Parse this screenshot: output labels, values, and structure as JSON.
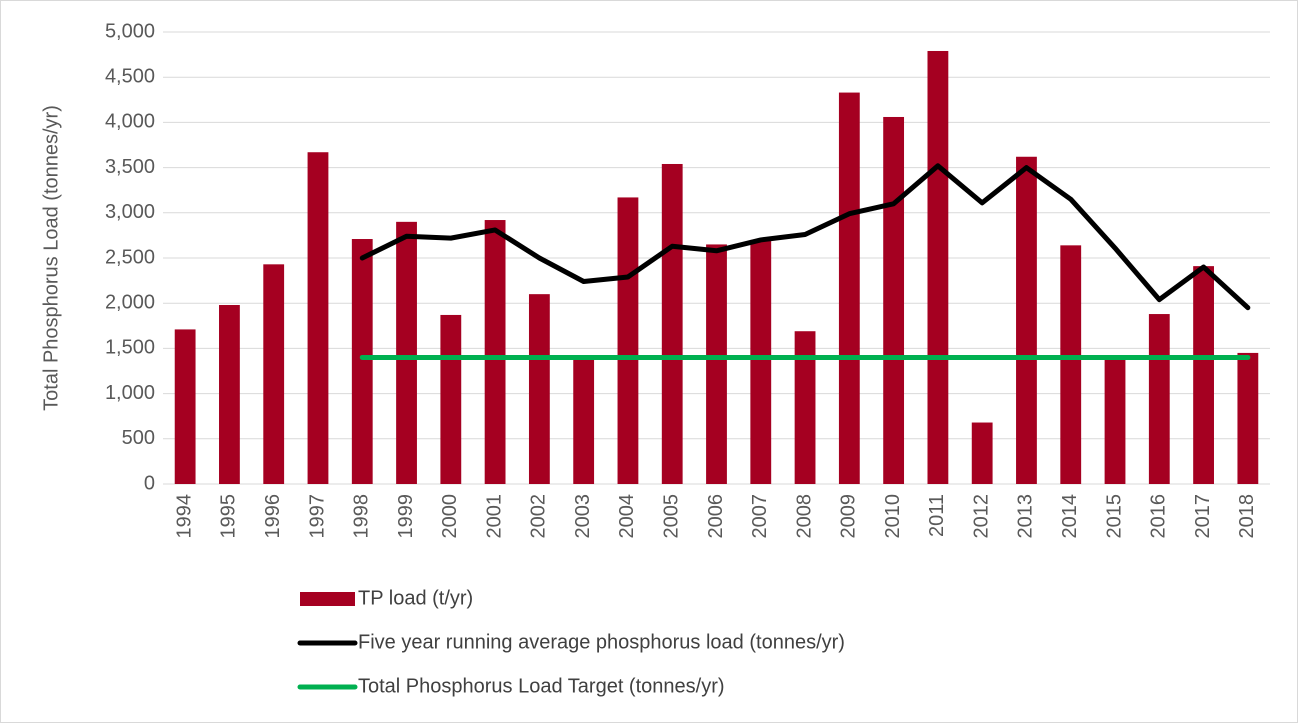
{
  "chart_data": {
    "type": "bar",
    "y_label": "Total Phosphorus Load (tonnes/yr)",
    "categories": [
      "1994",
      "1995",
      "1996",
      "1997",
      "1998",
      "1999",
      "2000",
      "2001",
      "2002",
      "2003",
      "2004",
      "2005",
      "2006",
      "2007",
      "2008",
      "2009",
      "2010",
      "2011",
      "2012",
      "2013",
      "2014",
      "2015",
      "2016",
      "2017",
      "2018"
    ],
    "series": [
      {
        "name": "TP load (t/yr)",
        "type": "bar",
        "color": "#a50021",
        "values": [
          1710,
          1980,
          2430,
          3670,
          2710,
          2900,
          1870,
          2920,
          2100,
          1400,
          3170,
          3540,
          2650,
          2700,
          1690,
          4330,
          4060,
          4790,
          680,
          3620,
          2640,
          1400,
          1880,
          2410,
          1450
        ]
      },
      {
        "name": "Five year running average phosphorus load (tonnes/yr)",
        "type": "line",
        "color": "#000000",
        "values": [
          null,
          null,
          null,
          null,
          2500,
          2740,
          2720,
          2810,
          2500,
          2240,
          2290,
          2630,
          2580,
          2700,
          2760,
          2990,
          3100,
          3520,
          3110,
          3500,
          3150,
          2610,
          2040,
          2400,
          1950
        ]
      },
      {
        "name": "Total Phosphorus Load Target (tonnes/yr)",
        "type": "line",
        "color": "#00b050",
        "values": [
          null,
          null,
          null,
          null,
          1400,
          1400,
          1400,
          1400,
          1400,
          1400,
          1400,
          1400,
          1400,
          1400,
          1400,
          1400,
          1400,
          1400,
          1400,
          1400,
          1400,
          1400,
          1400,
          1400,
          1400
        ]
      }
    ],
    "ylim": [
      0,
      5000
    ],
    "yticks": [
      0,
      500,
      {
        "value": 1000,
        "label": "1,000"
      },
      {
        "value": 1500,
        "label": "1,500"
      },
      {
        "value": 2000,
        "label": "2,000"
      },
      {
        "value": 2500,
        "label": "2,500"
      },
      {
        "value": 3000,
        "label": "3,000"
      },
      {
        "value": 3500,
        "label": "3,500"
      },
      {
        "value": 4000,
        "label": "4,000"
      },
      {
        "value": 4500,
        "label": "4,500"
      },
      {
        "value": 5000,
        "label": "5,000"
      }
    ],
    "grid": true
  }
}
